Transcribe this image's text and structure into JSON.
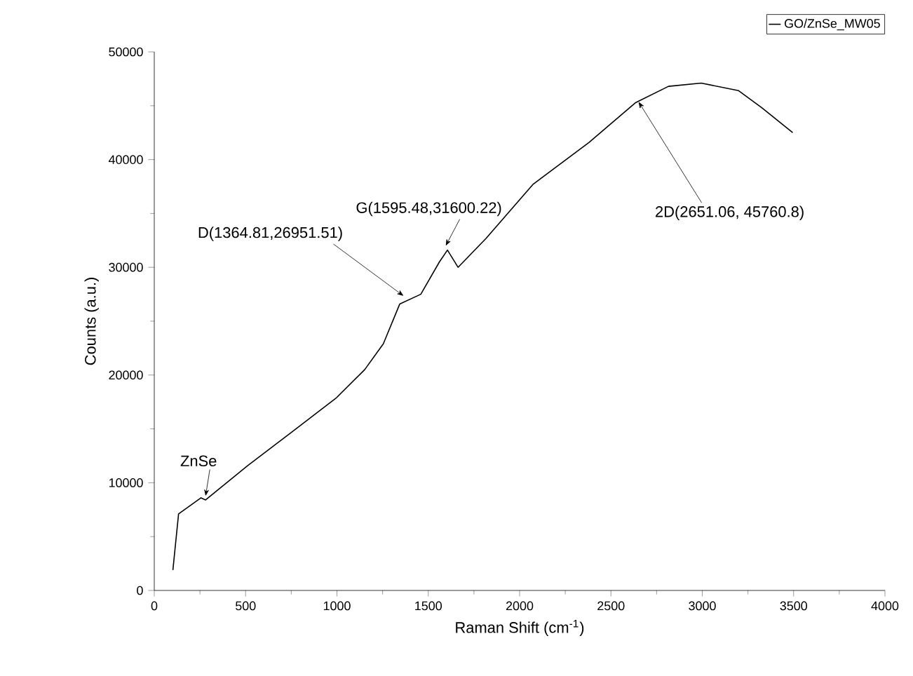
{
  "chart_data": {
    "type": "line",
    "xlabel": "Raman Shift (cm$^{-1}$)",
    "ylabel": "Counts (a.u.)",
    "x": [
      102,
      133,
      256,
      281,
      512,
      768,
      998,
      1152,
      1254,
      1344,
      1459,
      1561,
      1605,
      1663,
      1817,
      2073,
      2380,
      2636,
      2815,
      2994,
      3199,
      3327,
      3495
    ],
    "series": [
      {
        "name": "GO/ZnSe_MW05",
        "color": "#000000",
        "values": [
          1900,
          7100,
          8600,
          8400,
          11600,
          14900,
          17900,
          20500,
          22900,
          26600,
          27500,
          30500,
          31600,
          30000,
          32700,
          37700,
          41600,
          45300,
          46800,
          47100,
          46400,
          44800,
          42500
        ]
      }
    ],
    "xlim": [
      0,
      4000
    ],
    "xticks": [
      0,
      500,
      1000,
      1500,
      2000,
      2500,
      3000,
      3500,
      4000
    ],
    "ylim": [
      0,
      50000
    ],
    "yticks": [
      0,
      10000,
      20000,
      30000,
      40000,
      50000
    ],
    "legend": "top right",
    "grid": false,
    "annotations": [
      {
        "text": "ZnSe",
        "x": 281,
        "y": 8370
      },
      {
        "text": "D(1364.81,26951.51)",
        "x": 1364.81,
        "y": 26951.51
      },
      {
        "text": "G(1595.48,31600.22)",
        "x": 1595.48,
        "y": 31600.22
      },
      {
        "text": "2D(2651.06, 45760.8)",
        "x": 2651.06,
        "y": 45760.8
      }
    ]
  }
}
